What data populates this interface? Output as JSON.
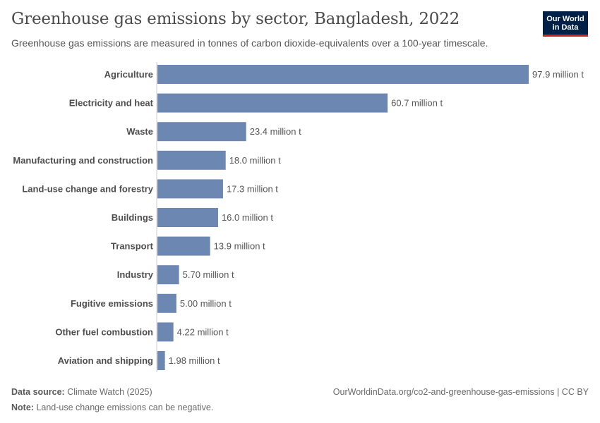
{
  "header": {
    "title": "Greenhouse gas emissions by sector, Bangladesh, 2022",
    "subtitle": "Greenhouse gas emissions are measured in tonnes of carbon dioxide-equivalents over a 100-year timescale.",
    "logo_line1": "Our World",
    "logo_line2": "in Data"
  },
  "chart_data": {
    "type": "bar",
    "orientation": "horizontal",
    "categories": [
      "Agriculture",
      "Electricity and heat",
      "Waste",
      "Manufacturing and construction",
      "Land-use change and forestry",
      "Buildings",
      "Transport",
      "Industry",
      "Fugitive emissions",
      "Other fuel combustion",
      "Aviation and shipping"
    ],
    "values": [
      97.9,
      60.7,
      23.4,
      18.0,
      17.3,
      16.0,
      13.9,
      5.7,
      5.0,
      4.22,
      1.98
    ],
    "value_labels": [
      "97.9 million t",
      "60.7 million t",
      "23.4 million t",
      "18.0 million t",
      "17.3 million t",
      "16.0 million t",
      "13.9 million t",
      "5.70 million t",
      "5.00 million t",
      "4.22 million t",
      "1.98 million t"
    ],
    "unit": "million t",
    "xlim": [
      0,
      97.9
    ],
    "bar_color": "#6d87b3",
    "grid": false
  },
  "footer": {
    "source_label": "Data source:",
    "source_value": "Climate Watch (2025)",
    "url": "OurWorldinData.org/co2-and-greenhouse-gas-emissions | CC BY",
    "note_label": "Note:",
    "note_value": "Land-use change emissions can be negative."
  }
}
